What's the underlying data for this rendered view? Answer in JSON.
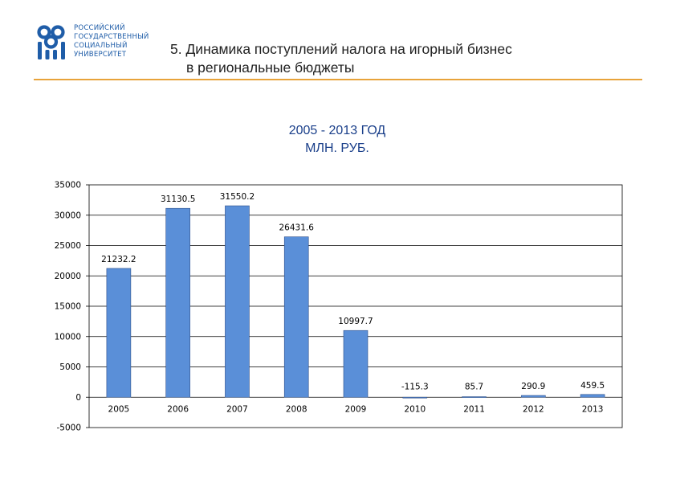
{
  "logo": {
    "lines": [
      "РОССИЙСКИЙ",
      "ГОСУДАРСТВЕННЫЙ",
      "СОЦИАЛЬНЫЙ",
      "УНИВЕРСИТЕТ"
    ]
  },
  "slide": {
    "title_line1": "5. Динамика поступлений налога на игорный бизнес",
    "title_line2": "в региональные бюджеты"
  },
  "colors": {
    "bar": "#5a8fd8",
    "bar_edge": "#2d4f8a",
    "accent_rule": "#e8a33a",
    "brand": "#1f5da8",
    "chart_title": "#1a3f8a"
  },
  "chart_data": {
    "type": "bar",
    "title": "2005 - 2013 ГОД",
    "subtitle": "МЛН. РУБ.",
    "xlabel": "",
    "ylabel": "",
    "categories": [
      "2005",
      "2006",
      "2007",
      "2008",
      "2009",
      "2010",
      "2011",
      "2012",
      "2013"
    ],
    "values": [
      21232.2,
      31130.5,
      31550.2,
      26431.6,
      10997.7,
      -115.3,
      85.7,
      290.9,
      459.5
    ],
    "value_labels": [
      "21232.2",
      "31130.5",
      "31550.2",
      "26431.6",
      "10997.7",
      "-115.3",
      "85.7",
      "290.9",
      "459.5"
    ],
    "ylim": [
      -5000,
      35000
    ],
    "yticks": [
      -5000,
      0,
      5000,
      10000,
      15000,
      20000,
      25000,
      30000,
      35000
    ],
    "grid": true,
    "legend": false
  }
}
